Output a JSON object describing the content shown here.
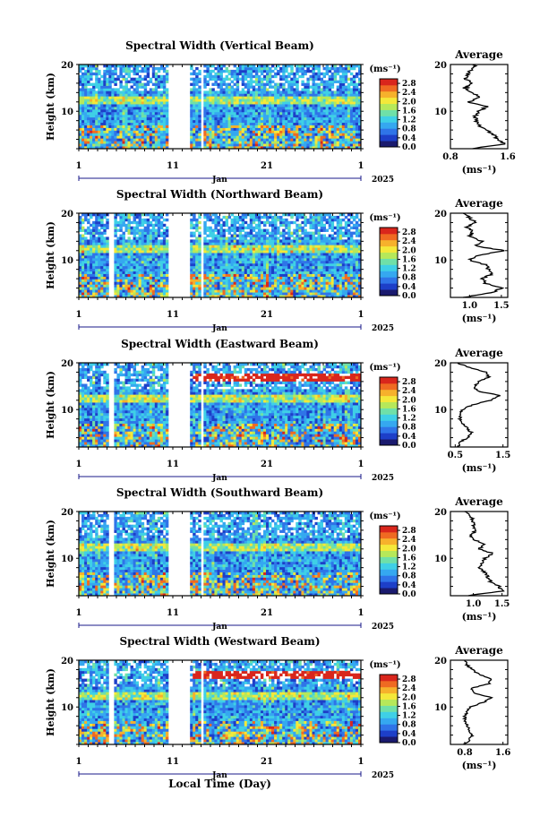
{
  "figure": {
    "bottom_xlabel": "Local Time (Day)",
    "month_label": "Jan",
    "year_label": "2025",
    "unit_label": "(ms⁻¹)",
    "avg_title": "Average",
    "avg_xlabel": "(ms⁻¹)"
  },
  "colorbar": {
    "ticks": [
      "0.0",
      "0.4",
      "0.8",
      "1.2",
      "1.6",
      "2.0",
      "2.4",
      "2.8"
    ],
    "range": [
      0,
      3.0
    ],
    "colors": [
      "#1a1a6e",
      "#1d3fc8",
      "#2f74e8",
      "#35a8f0",
      "#3fd0e6",
      "#6fe0a8",
      "#b6e85a",
      "#f4e83a",
      "#f6b12c",
      "#ef6a22",
      "#d9261c"
    ]
  },
  "chart_data": [
    {
      "type": "heatmap",
      "title": "Spectral Width (Vertical Beam)",
      "ylabel": "Height (km)",
      "xlim": [
        1,
        31
      ],
      "ylim": [
        2,
        20
      ],
      "xticks": [
        "1",
        "11",
        "21",
        "1"
      ],
      "yticks": [
        "10",
        "20"
      ],
      "gaps": [
        [
          10.5,
          12.7
        ],
        [
          13.8,
          14.0
        ]
      ],
      "features": {
        "high_band_km": null,
        "mid_band_km": 12
      },
      "average": {
        "xlim": [
          0.8,
          1.6
        ],
        "xticks": [
          "0.8",
          "1.6"
        ],
        "heights": [
          2,
          3,
          4,
          5,
          6,
          7,
          8,
          9,
          10,
          11,
          12,
          13,
          14,
          15,
          16,
          17,
          18,
          19,
          20
        ],
        "values": [
          1.1,
          1.55,
          1.45,
          1.4,
          1.3,
          1.2,
          1.15,
          1.15,
          1.2,
          1.3,
          1.05,
          1.2,
          1.1,
          1.0,
          1.1,
          1.0,
          1.05,
          1.1,
          1.15
        ]
      }
    },
    {
      "type": "heatmap",
      "title": "Spectral Width (Northward Beam)",
      "ylabel": "Height (km)",
      "xlim": [
        1,
        31
      ],
      "ylim": [
        2,
        20
      ],
      "xticks": [
        "1",
        "11",
        "21",
        "1"
      ],
      "yticks": [
        "10",
        "20"
      ],
      "gaps": [
        [
          4.0,
          4.5
        ],
        [
          10.5,
          12.7
        ],
        [
          13.8,
          14.0
        ]
      ],
      "features": {
        "high_band_km": null,
        "mid_band_km": 12
      },
      "average": {
        "xlim": [
          0.7,
          1.6
        ],
        "xticks": [
          "1.0",
          "1.5"
        ],
        "heights": [
          2,
          3,
          4,
          5,
          6,
          7,
          8,
          9,
          10,
          11,
          12,
          13,
          14,
          15,
          16,
          17,
          18,
          19,
          20
        ],
        "values": [
          0.9,
          1.35,
          1.5,
          1.25,
          1.2,
          1.35,
          1.3,
          1.25,
          1.0,
          1.15,
          1.55,
          1.1,
          1.2,
          1.0,
          1.05,
          0.95,
          1.1,
          1.0,
          0.9
        ]
      }
    },
    {
      "type": "heatmap",
      "title": "Spectral Width (Eastward Beam)",
      "ylabel": "Height (km)",
      "xlim": [
        1,
        31
      ],
      "ylim": [
        2,
        20
      ],
      "xticks": [
        "1",
        "11",
        "21",
        "1"
      ],
      "yticks": [
        "10",
        "20"
      ],
      "gaps": [
        [
          4.0,
          4.5
        ],
        [
          10.5,
          12.7
        ],
        [
          13.8,
          14.0
        ]
      ],
      "features": {
        "high_band_km": 16.5,
        "mid_band_km": 12
      },
      "average": {
        "xlim": [
          0.4,
          1.6
        ],
        "xticks": [
          "0.5",
          "1.5"
        ],
        "heights": [
          2,
          3,
          4,
          5,
          6,
          7,
          8,
          9,
          10,
          11,
          12,
          13,
          14,
          15,
          16,
          17,
          18,
          19,
          20
        ],
        "values": [
          0.55,
          0.6,
          0.75,
          0.85,
          0.75,
          0.65,
          0.6,
          0.6,
          0.65,
          0.85,
          1.25,
          1.45,
          0.95,
          0.9,
          1.0,
          1.2,
          1.15,
          0.8,
          0.55
        ]
      }
    },
    {
      "type": "heatmap",
      "title": "Spectral Width (Southward Beam)",
      "ylabel": "Height (km)",
      "xlim": [
        1,
        31
      ],
      "ylim": [
        2,
        20
      ],
      "xticks": [
        "1",
        "11",
        "21",
        "1"
      ],
      "yticks": [
        "10",
        "20"
      ],
      "gaps": [
        [
          4.0,
          4.5
        ],
        [
          10.5,
          12.7
        ],
        [
          13.8,
          14.0
        ]
      ],
      "features": {
        "high_band_km": null,
        "mid_band_km": 12
      },
      "average": {
        "xlim": [
          0.6,
          1.6
        ],
        "xticks": [
          "1.0",
          "1.5"
        ],
        "heights": [
          2,
          3,
          4,
          5,
          6,
          7,
          8,
          9,
          10,
          11,
          12,
          13,
          14,
          15,
          16,
          17,
          18,
          19,
          20
        ],
        "values": [
          0.9,
          1.5,
          1.45,
          1.3,
          1.25,
          1.2,
          1.1,
          1.15,
          1.2,
          1.35,
          1.1,
          1.2,
          1.0,
          0.95,
          1.05,
          1.0,
          1.0,
          0.95,
          0.85
        ]
      }
    },
    {
      "type": "heatmap",
      "title": "Spectral Width (Westward Beam)",
      "ylabel": "Height (km)",
      "xlim": [
        1,
        31
      ],
      "ylim": [
        2,
        20
      ],
      "xticks": [
        "1",
        "11",
        "21",
        "1"
      ],
      "yticks": [
        "10",
        "20"
      ],
      "gaps": [
        [
          4.0,
          4.5
        ],
        [
          10.5,
          12.7
        ],
        [
          13.8,
          14.0
        ]
      ],
      "features": {
        "high_band_km": 16.5,
        "mid_band_km": 12
      },
      "average": {
        "xlim": [
          0.5,
          1.7
        ],
        "xticks": [
          "0.8",
          "1.6"
        ],
        "heights": [
          2,
          3,
          4,
          5,
          6,
          7,
          8,
          9,
          10,
          11,
          12,
          13,
          14,
          15,
          16,
          17,
          18,
          19,
          20
        ],
        "values": [
          0.8,
          0.9,
          0.95,
          0.9,
          0.85,
          0.8,
          0.8,
          0.85,
          0.9,
          1.2,
          1.35,
          1.0,
          0.95,
          1.3,
          1.35,
          1.1,
          0.95,
          0.85,
          0.8
        ]
      }
    }
  ]
}
